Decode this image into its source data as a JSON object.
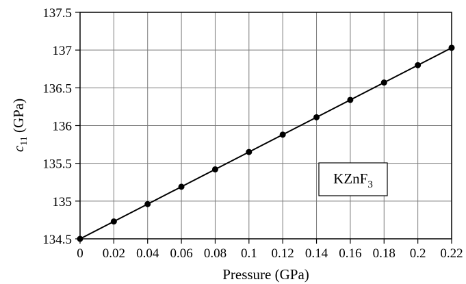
{
  "chart_data": {
    "type": "line",
    "title": "",
    "xlabel": "Pressure (GPa)",
    "ylabel": {
      "main": "c",
      "sub": "11",
      "unit": " (GPa)"
    },
    "x_ticks": [
      "0",
      "0.02",
      "0.04",
      "0.06",
      "0.08",
      "0.1",
      "0.12",
      "0.14",
      "0.16",
      "0.18",
      "0.2",
      "0.22"
    ],
    "y_ticks": [
      "134.5",
      "135",
      "135.5",
      "136",
      "136.5",
      "137",
      "137.5"
    ],
    "xlim": [
      0,
      0.22
    ],
    "ylim": [
      134.5,
      137.5
    ],
    "grid": true,
    "series": [
      {
        "x": [
          0,
          0.02,
          0.04,
          0.06,
          0.08,
          0.1,
          0.12,
          0.14,
          0.16,
          0.18,
          0.2,
          0.22
        ],
        "y": [
          134.5,
          134.73,
          134.96,
          135.19,
          135.42,
          135.65,
          135.88,
          136.11,
          136.34,
          136.57,
          136.8,
          137.03
        ],
        "color": "#000000",
        "marker": "circle"
      }
    ],
    "annotation": {
      "main": "KZnF",
      "sub": "3"
    }
  }
}
